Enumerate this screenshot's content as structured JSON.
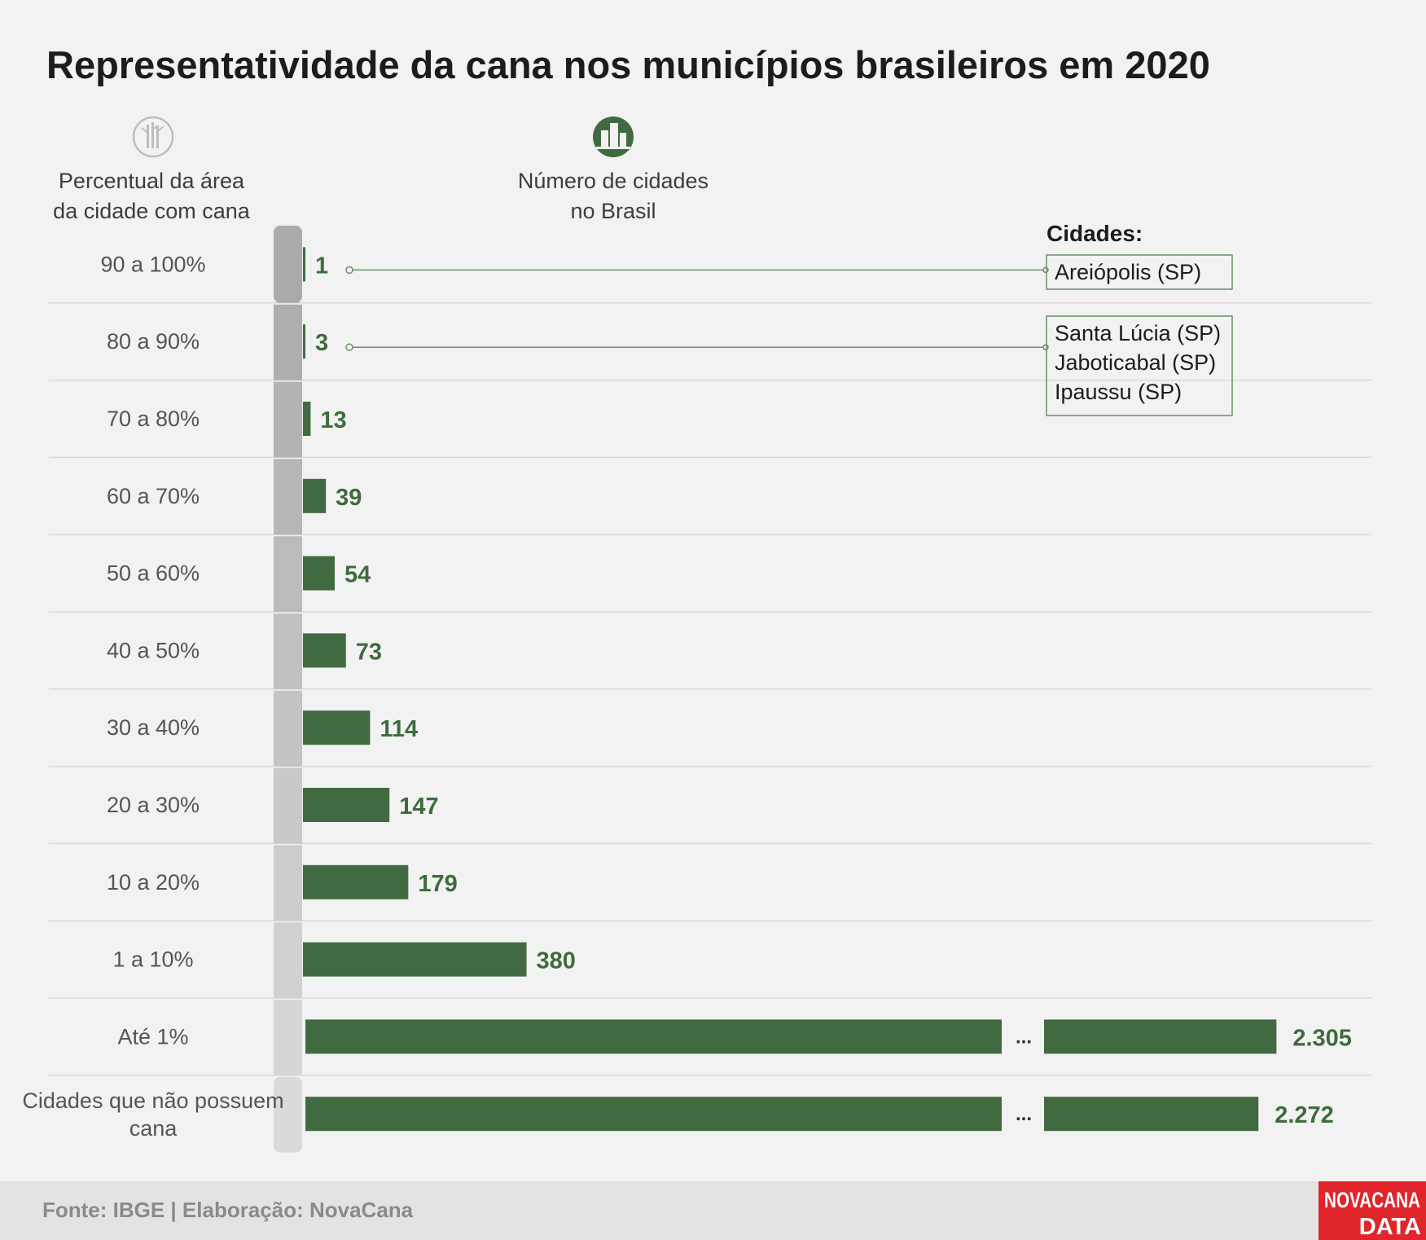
{
  "colors": {
    "bar": "#426a41",
    "value_text": "#3f6b3d",
    "connector": "#6b8f69",
    "icon_green": "#426a41",
    "icon_gray": "#bdbdbd",
    "logo_red": "#e0252b",
    "footer_bg": "#e3e3e3"
  },
  "headers": {
    "left_line1": "Percentual da área",
    "left_line2": "da cidade com cana",
    "right_line1": "Número de cidades",
    "right_line2": "no Brasil",
    "left_icon": "sugarcane-icon",
    "right_icon": "city-buildings-icon"
  },
  "cities": {
    "title": "Cidades:",
    "group1": [
      "Areiópolis (SP)"
    ],
    "group2": [
      "Santa Lúcia (SP)",
      "Jaboticabal (SP)",
      "Ipaussu (SP)"
    ]
  },
  "break_symbol": "...",
  "chart_data": {
    "type": "bar",
    "orientation": "horizontal",
    "title": "Representatividade da cana nos municípios brasileiros em 2020",
    "xlabel": "Número de cidades no Brasil",
    "ylabel": "Percentual da área da cidade com cana",
    "categories": [
      "90 a 100%",
      "80 a 90%",
      "70 a 80%",
      "60 a 70%",
      "50 a 60%",
      "40 a 50%",
      "30 a 40%",
      "20 a 30%",
      "10 a 20%",
      "1 a 10%",
      "Até 1%",
      "Cidades que não possuem cana"
    ],
    "values": [
      1,
      3,
      13,
      39,
      54,
      73,
      114,
      147,
      179,
      380,
      2305,
      2272
    ],
    "value_labels": [
      "1",
      "3",
      "13",
      "39",
      "54",
      "73",
      "114",
      "147",
      "179",
      "380",
      "2.305",
      "2.272"
    ],
    "broken_axis_categories": [
      "Até 1%",
      "Cidades que não possuem cana"
    ],
    "grid": false,
    "legend": "none"
  },
  "footer": {
    "source": "Fonte: IBGE | Elaboração: NovaCana",
    "logo_line1": "NOVACANA",
    "logo_line2": "DATA"
  }
}
